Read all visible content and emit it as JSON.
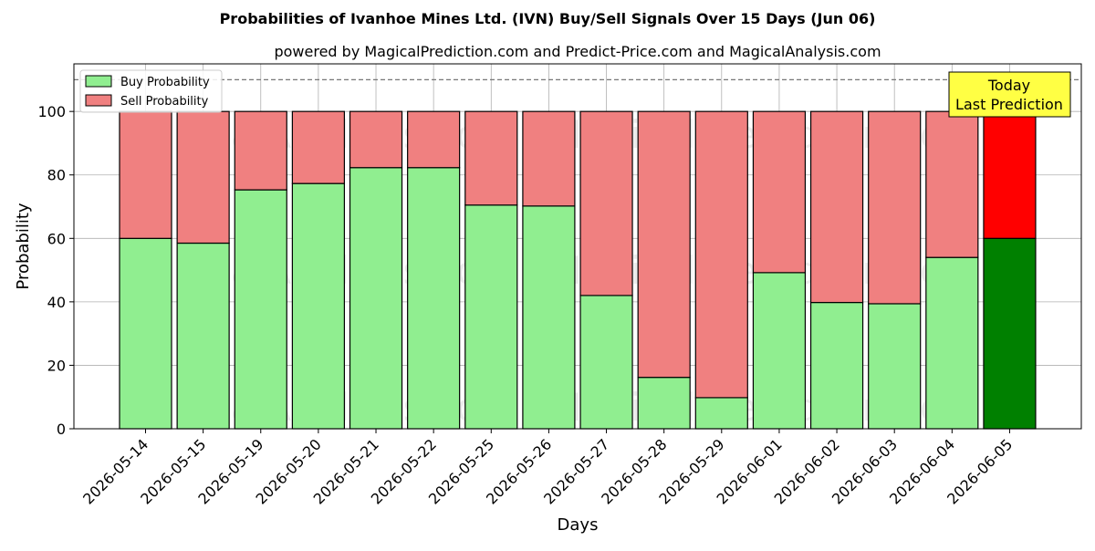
{
  "chart_data": {
    "type": "bar",
    "stacked": true,
    "title": "Probabilities of Ivanhoe Mines Ltd. (IVN) Buy/Sell Signals Over 15 Days (Jun 06)",
    "subtitle": "powered by MagicalPrediction.com and Predict-Price.com and MagicalAnalysis.com",
    "xlabel": "Days",
    "ylabel": "Probability",
    "ylim": [
      0,
      115
    ],
    "yticks": [
      0,
      20,
      40,
      60,
      80,
      100
    ],
    "grid": true,
    "legend_position": "top-left",
    "reference_line": 110,
    "categories": [
      "2026-05-14",
      "2026-05-15",
      "2026-05-19",
      "2026-05-20",
      "2026-05-21",
      "2026-05-22",
      "2026-05-25",
      "2026-05-26",
      "2026-05-27",
      "2026-05-28",
      "2026-05-29",
      "2026-06-01",
      "2026-06-02",
      "2026-06-03",
      "2026-06-04",
      "2026-06-05"
    ],
    "series": [
      {
        "name": "Buy Probability",
        "color": "#90ee90",
        "highlight_color": "#008000",
        "values": [
          60,
          58.5,
          75.3,
          77.3,
          82.3,
          82.3,
          70.5,
          70.2,
          42,
          16.2,
          9.8,
          49.2,
          39.8,
          39.4,
          54,
          60
        ]
      },
      {
        "name": "Sell Probability",
        "color": "#f08080",
        "highlight_color": "#ff0000",
        "values": [
          40,
          41.5,
          24.7,
          22.7,
          17.7,
          17.7,
          29.5,
          29.8,
          58,
          83.8,
          90.2,
          50.8,
          60.2,
          60.6,
          46,
          40
        ]
      }
    ],
    "highlight_index": 15,
    "annotation": {
      "lines": [
        "Today",
        "Last Prediction"
      ],
      "color": "#ffff44"
    },
    "watermarks": [
      "MagicalAnalysis.com",
      "MagicalPrediction.com"
    ]
  }
}
